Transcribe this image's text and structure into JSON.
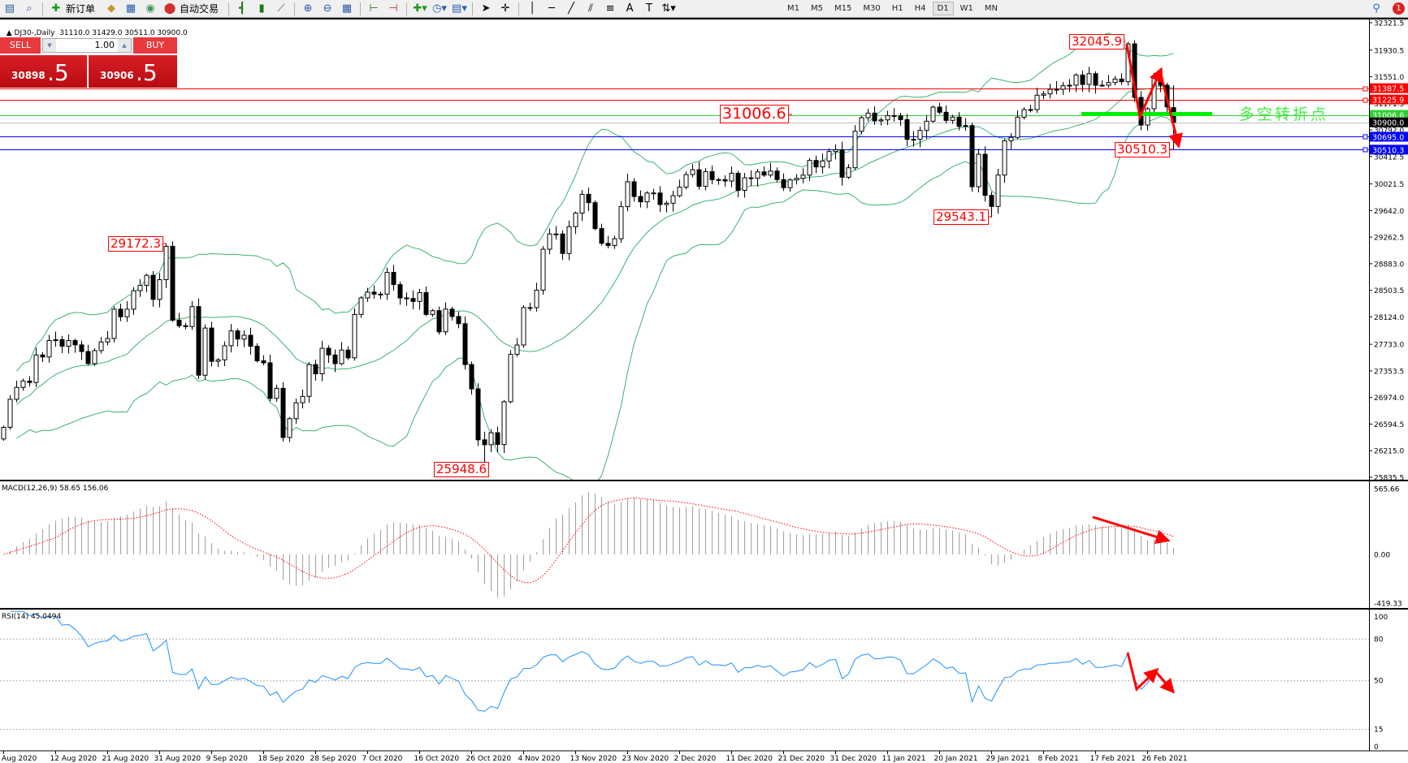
{
  "toolbar": {
    "new_order": "新订单",
    "auto_trading": "自动交易",
    "timeframes": [
      "M1",
      "M5",
      "M15",
      "M30",
      "H1",
      "H4",
      "D1",
      "W1",
      "MN"
    ],
    "active_timeframe": "D1",
    "notification_count": "1",
    "icons": [
      "new-chart-icon",
      "profiles-icon",
      "new-order-icon",
      "market-watch-icon",
      "navigator-icon",
      "signals-icon",
      "auto-trading-icon",
      "bar-chart-icon",
      "candlestick-icon",
      "line-chart-icon",
      "zoom-in-icon",
      "zoom-out-icon",
      "tile-windows-icon",
      "autoscroll-icon",
      "chart-shift-icon",
      "indicators-icon",
      "periods-icon",
      "templates-icon",
      "cursor-icon",
      "crosshair-icon",
      "vertical-line-icon",
      "horizontal-line-icon",
      "trendline-icon",
      "channel-icon",
      "fibonacci-icon",
      "text-icon",
      "text-label-icon",
      "arrows-icon",
      "search-icon",
      "notification-icon"
    ]
  },
  "chart": {
    "symbol_header": "DJ30-,Daily",
    "ohlc_text": "31110.0 31429.0 30511.0 30900.0"
  },
  "trade_panel": {
    "sell_label": "SELL",
    "buy_label": "BUY",
    "lot": "1.00",
    "sell_price_main": "30898",
    "sell_price_big": ".5",
    "buy_price_main": "30906",
    "buy_price_big": ".5",
    "color": "#e8393f"
  },
  "indicators": {
    "macd_label": "MACD(12,26,9) 58.65 156.06",
    "rsi_label": "RSI(14) 45.0494"
  },
  "chart_data": {
    "type": "candlestick",
    "ylim": [
      25835.5,
      32321.5
    ],
    "price_ticks": [
      "32321.5",
      "31930.5",
      "31551.0",
      "31171.5",
      "30792.0",
      "30412.5",
      "30021.5",
      "29642.0",
      "29262.5",
      "28883.0",
      "28503.5",
      "28124.0",
      "27733.0",
      "27353.5",
      "26974.0",
      "26594.5",
      "26215.0",
      "25835.5"
    ],
    "closes": [
      26548,
      26948,
      27118,
      27209,
      27188,
      27581,
      27552,
      27787,
      27800,
      27705,
      27787,
      27725,
      27630,
      27457,
      27643,
      27767,
      27816,
      28234,
      28126,
      28234,
      28498,
      28573,
      28717,
      28374,
      28655,
      29131,
      28077,
      27998,
      27986,
      28271,
      27292,
      27965,
      27490,
      27511,
      27713,
      27924,
      27808,
      27862,
      27705,
      27498,
      27469,
      26961,
      27105,
      26403,
      26672,
      26899,
      26990,
      27444,
      27312,
      27676,
      27581,
      27457,
      27651,
      27540,
      28159,
      28395,
      28478,
      28449,
      28449,
      28759,
      28585,
      28395,
      28387,
      28345,
      28470,
      28159,
      28213,
      27911,
      28234,
      28130,
      28027,
      27444,
      27097,
      26370,
      26300,
      26471,
      26303,
      26914,
      27589,
      27723,
      28257,
      28257,
      28506,
      29090,
      29307,
      29307,
      29029,
      29411,
      29605,
      29873,
      29754,
      29384,
      29174,
      29143,
      29239,
      29697,
      30052,
      29842,
      29766,
      29892,
      29892,
      29727,
      29747,
      29853,
      29976,
      30155,
      30224,
      29987,
      30197,
      30083,
      30083,
      30063,
      30174,
      29930,
      30109,
      30102,
      30193,
      30147,
      30205,
      30083,
      29968,
      30079,
      30102,
      30147,
      30357,
      30264,
      30349,
      30484,
      30510,
      30117,
      30252,
      30773,
      30966,
      31032,
      30920,
      30935,
      30997,
      30993,
      30939,
      30658,
      30658,
      30785,
      30916,
      31117,
      31044,
      30928,
      30974,
      30843,
      30854,
      29982,
      30445,
      29858,
      29700,
      30148,
      30638,
      30685,
      30974,
      31082,
      31082,
      31287,
      31306,
      31372,
      31372,
      31422,
      31430,
      31576,
      31441,
      31595,
      31430,
      31430,
      31468,
      31518,
      31480,
      32020,
      31256,
      30862,
      31094,
      31545,
      31430,
      31121,
      30900
    ],
    "last_bar": {
      "open": 31110.0,
      "high": 31429.0,
      "low": 30511.0,
      "close": 30900.0
    },
    "extremes": [
      {
        "bar": 25,
        "kind": "high",
        "value": 29172.3
      },
      {
        "bar": 74,
        "kind": "low",
        "value": 25948.6
      },
      {
        "bar": 152,
        "kind": "low",
        "value": 29543.1
      },
      {
        "bar": 173,
        "kind": "high",
        "value": 32045.9
      },
      {
        "bar": 180,
        "kind": "low",
        "value": 30510.3
      }
    ],
    "price_labels": [
      "29172.3",
      "25948.6",
      "31006.6",
      "32045.9",
      "29543.1",
      "30510.3"
    ],
    "horizontal_lines": [
      {
        "value": 31387.5,
        "label": "31387.5",
        "color": "#ff0000"
      },
      {
        "value": 31225.9,
        "label": "31225.9",
        "color": "#ff0000"
      },
      {
        "value": 31006.6,
        "label": "31006.6",
        "color": "#33cc33"
      },
      {
        "value": 30900.0,
        "label": "30900.0",
        "color": "#000000",
        "line_color": "#c0c0c0"
      },
      {
        "value": 30695.0,
        "label": "30695.0",
        "color": "#0000ff"
      },
      {
        "value": 30510.3,
        "label": "30510.3",
        "color": "#0000ff"
      }
    ],
    "bollinger_color": "#3cb371",
    "turning_point_text": "多空转折点",
    "macd": {
      "ylim": [
        -419.33,
        565.66
      ],
      "ticks": [
        "565.66",
        "0.00",
        "-419.33"
      ],
      "histogram_color": "#a0a0a0",
      "signal_color": "#ff0000"
    },
    "rsi": {
      "ylim": [
        0,
        100
      ],
      "levels": [
        80,
        50,
        15
      ],
      "ticks": [
        "100",
        "80",
        "50",
        "15",
        "0"
      ],
      "color": "#1e90ff"
    },
    "date_labels": [
      "Aug 2020",
      "12 Aug 2020",
      "21 Aug 2020",
      "31 Aug 2020",
      "9 Sep 2020",
      "18 Sep 2020",
      "28 Sep 2020",
      "7 Oct 2020",
      "16 Oct 2020",
      "26 Oct 2020",
      "4 Nov 2020",
      "13 Nov 2020",
      "23 Nov 2020",
      "2 Dec 2020",
      "11 Dec 2020",
      "21 Dec 2020",
      "31 Dec 2020",
      "11 Jan 2021",
      "20 Jan 2021",
      "29 Jan 2021",
      "8 Feb 2021",
      "17 Feb 2021",
      "26 Feb 2021"
    ]
  }
}
